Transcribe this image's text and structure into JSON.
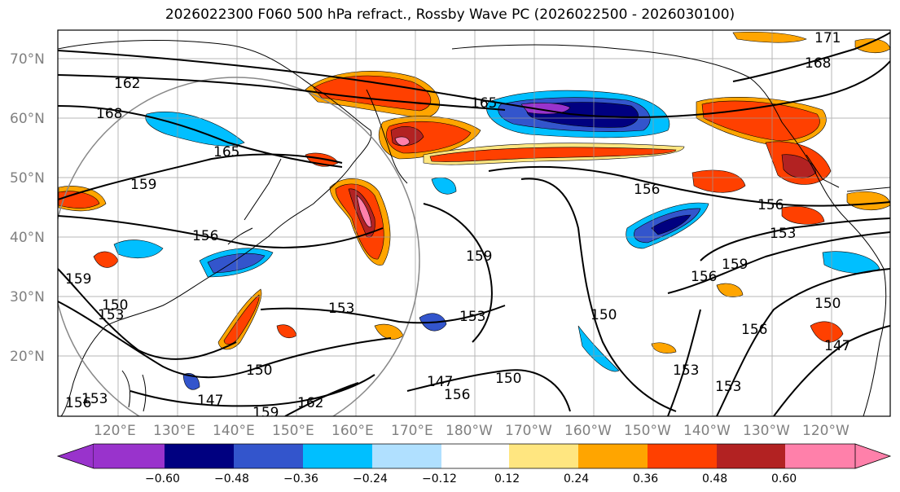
{
  "title": "2026022300 F060 500 hPa refract., Rossby Wave PC (2026022500 - 2026030100)",
  "map": {
    "lon_labels": [
      "120°E",
      "130°E",
      "140°E",
      "150°E",
      "160°E",
      "170°E",
      "180°W",
      "170°W",
      "160°W",
      "150°W",
      "140°W",
      "130°W",
      "120°W"
    ],
    "lat_labels": [
      "70°N",
      "60°N",
      "50°N",
      "40°N",
      "30°N",
      "20°N"
    ],
    "contour_labels": [
      "162",
      "168",
      "165",
      "165",
      "159",
      "156",
      "153",
      "150",
      "147",
      "159",
      "156",
      "153",
      "150",
      "147",
      "171",
      "168",
      "156",
      "153",
      "159",
      "156",
      "159",
      "153",
      "150",
      "153",
      "156",
      "147",
      "156",
      "150",
      "153",
      "159",
      "162",
      "156",
      "153",
      "150"
    ],
    "colors": {
      "neg_060": "#9933cc",
      "neg_048": "#000080",
      "neg_036": "#3355cc",
      "neg_024": "#00bfff",
      "neg_012": "#b0e0ff",
      "neutral": "#ffffff",
      "pos_012": "#ffe680",
      "pos_024": "#ffa500",
      "pos_036": "#ff4000",
      "pos_048": "#b22222",
      "pos_060": "#ff80aa"
    }
  },
  "colorbar": {
    "ticks": [
      "−0.60",
      "−0.48",
      "−0.36",
      "−0.24",
      "−0.12",
      "0.12",
      "0.24",
      "0.36",
      "0.48",
      "0.60"
    ],
    "colors": [
      "#9933cc",
      "#000080",
      "#3355cc",
      "#00bfff",
      "#b0e0ff",
      "#ffffff",
      "#ffe680",
      "#ffa500",
      "#ff4000",
      "#b22222",
      "#ff80aa"
    ]
  }
}
